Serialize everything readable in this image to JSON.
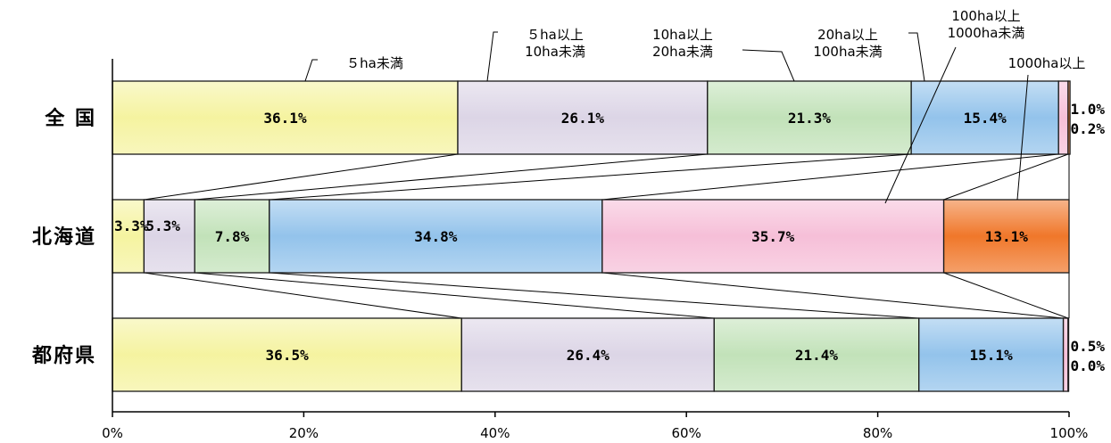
{
  "chart_data": {
    "type": "bar",
    "orientation": "horizontal",
    "stacked": "100%",
    "categories": [
      "全 国",
      "北海道",
      "都府県"
    ],
    "series": [
      {
        "name": "５ha未満",
        "values": [
          36.1,
          3.3,
          36.5
        ],
        "labels": [
          "36.1%",
          "3.3%",
          "36.5%"
        ],
        "color": "#f5f3a0"
      },
      {
        "name": "５ha以上\n10ha未満",
        "values": [
          26.1,
          5.3,
          26.4
        ],
        "labels": [
          "26.1%",
          "5.3%",
          "26.4%"
        ],
        "color": "#dcd5e6"
      },
      {
        "name": "10ha以上\n20ha未満",
        "values": [
          21.3,
          7.8,
          21.4
        ],
        "labels": [
          "21.3%",
          "7.8%",
          "21.4%"
        ],
        "color": "#c2e2b9"
      },
      {
        "name": "20ha以上\n100ha未満",
        "values": [
          15.4,
          34.8,
          15.1
        ],
        "labels": [
          "15.4%",
          "34.8%",
          "15.1%"
        ],
        "color": "#93c3eb"
      },
      {
        "name": "100ha以上\n1000ha未満",
        "values": [
          1.0,
          35.7,
          0.5
        ],
        "labels": [
          "1.0%",
          "35.7%",
          "0.5%"
        ],
        "color": "#f6bfd8"
      },
      {
        "name": "1000ha以上",
        "values": [
          0.2,
          13.1,
          0.0
        ],
        "labels": [
          "0.2%",
          "13.1%",
          "0.0%"
        ],
        "color": "#f0772a"
      }
    ],
    "x_ticks": [
      "0%",
      "20%",
      "40%",
      "60%",
      "80%",
      "100%"
    ],
    "xlim": [
      0,
      100
    ],
    "grid": false,
    "legend": "callouts above bars"
  }
}
